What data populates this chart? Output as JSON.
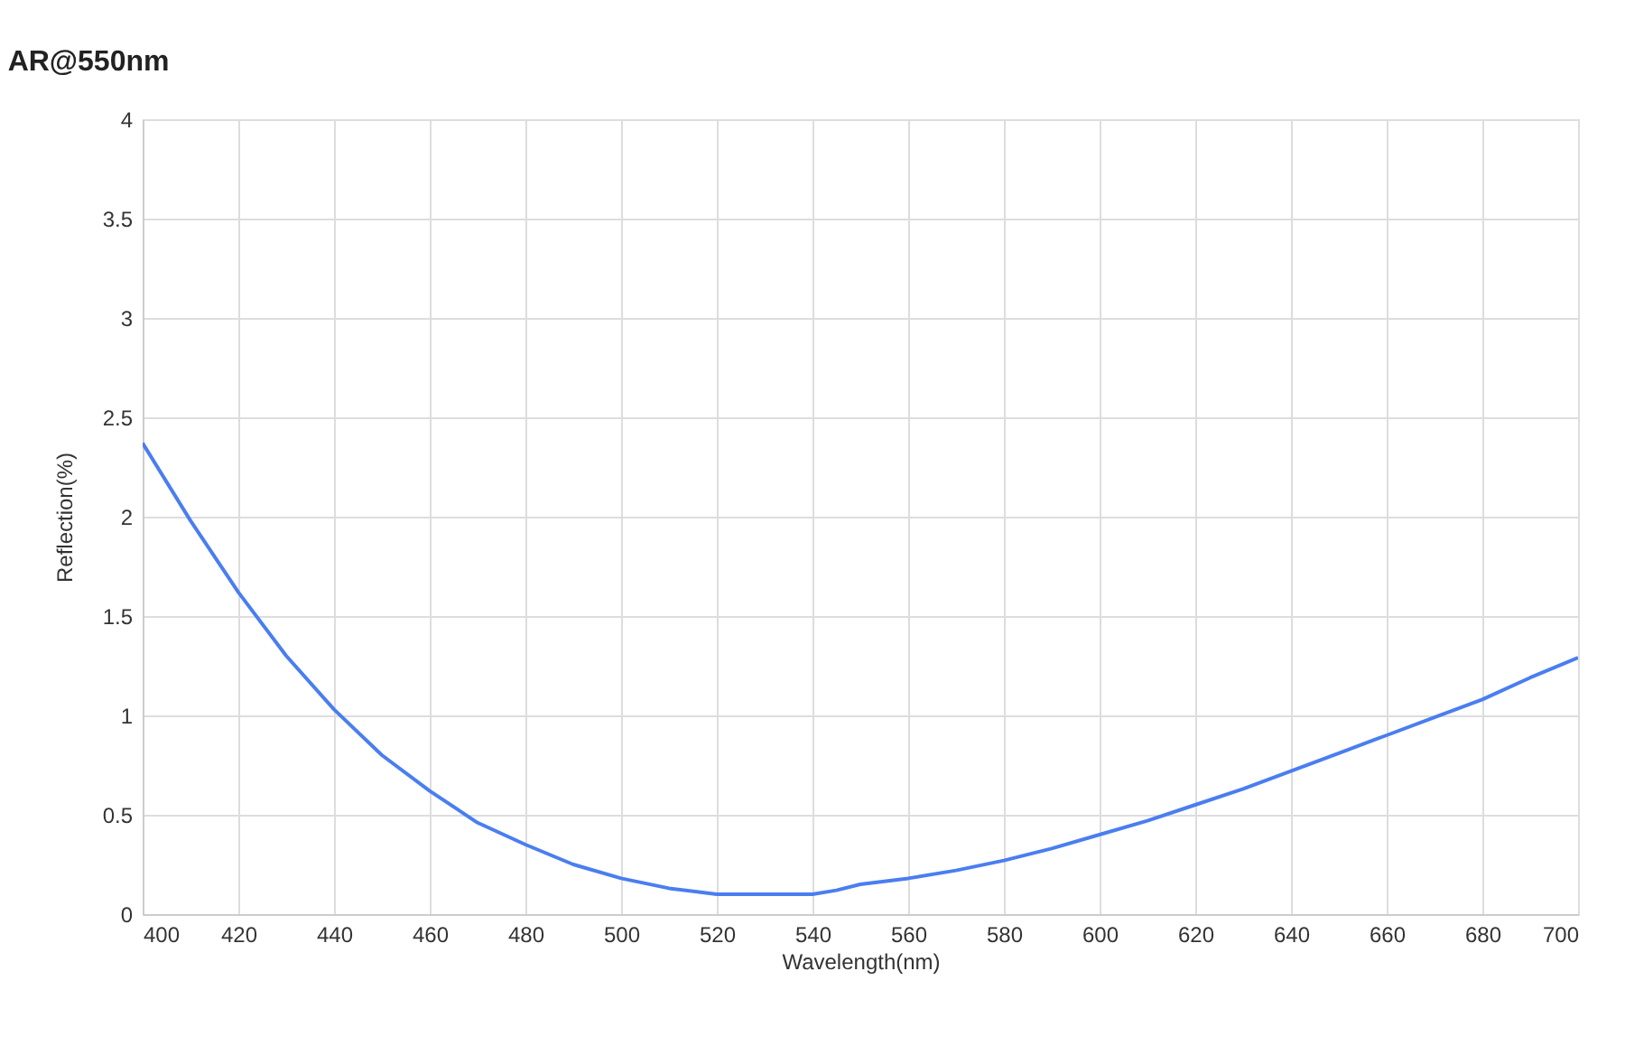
{
  "chart_data": {
    "type": "line",
    "title": "AR@550nm",
    "xlabel": "Wavelength(nm)",
    "ylabel": "Reflection(%)",
    "x": [
      400,
      410,
      420,
      430,
      440,
      450,
      460,
      470,
      480,
      490,
      500,
      510,
      520,
      530,
      540,
      545,
      550,
      560,
      570,
      580,
      590,
      600,
      610,
      620,
      630,
      640,
      650,
      660,
      670,
      680,
      690,
      700
    ],
    "series": [
      {
        "color": "#4a7ef0",
        "values": [
          2.37,
          1.98,
          1.62,
          1.3,
          1.03,
          0.8,
          0.62,
          0.46,
          0.35,
          0.25,
          0.18,
          0.13,
          0.1,
          0.1,
          0.1,
          0.12,
          0.15,
          0.18,
          0.22,
          0.27,
          0.33,
          0.4,
          0.47,
          0.55,
          0.63,
          0.72,
          0.81,
          0.9,
          0.99,
          1.08,
          1.19,
          1.29
        ]
      }
    ],
    "xlim": [
      400,
      700
    ],
    "xticks": [
      400,
      420,
      440,
      460,
      480,
      500,
      520,
      540,
      560,
      580,
      600,
      620,
      640,
      660,
      680,
      700
    ],
    "ylim": [
      0,
      4
    ],
    "yticks": [
      0,
      0.5,
      1,
      1.5,
      2,
      2.5,
      3,
      3.5,
      4
    ],
    "grid": true,
    "marker": "none",
    "line_style": "solid"
  }
}
